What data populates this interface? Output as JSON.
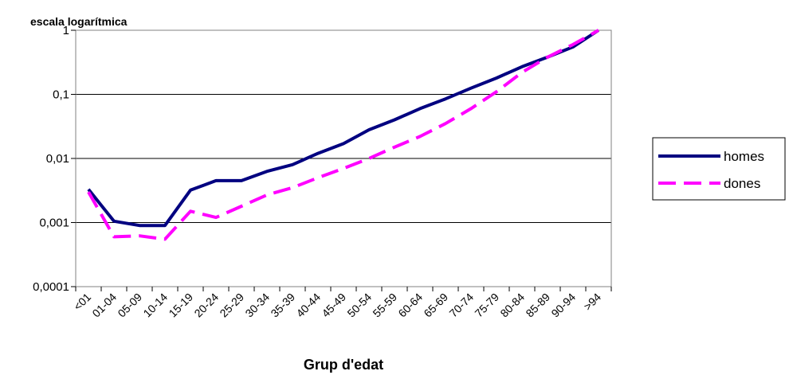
{
  "chart_data": {
    "type": "line",
    "ylabel": "escala logarítmica",
    "xlabel": "Grup d'edat",
    "yscale": "log",
    "ylim": [
      0.0001,
      1
    ],
    "yticks": [
      "0,0001",
      "0,001",
      "0,01",
      "0,1",
      "1"
    ],
    "grid": true,
    "legend_position": "right",
    "categories": [
      "<01",
      "01-04",
      "05-09",
      "10-14",
      "15-19",
      "20-24",
      "25-29",
      "30-34",
      "35-39",
      "40-44",
      "45-49",
      "50-54",
      "55-59",
      "60-64",
      "65-69",
      "70-74",
      "75-79",
      "80-84",
      "85-89",
      "90-94",
      ">94"
    ],
    "series": [
      {
        "name": "homes",
        "color": "#000080",
        "style": "solid",
        "values": [
          0.0033,
          0.00105,
          0.0009,
          0.0009,
          0.0032,
          0.0045,
          0.0045,
          0.0063,
          0.008,
          0.012,
          0.017,
          0.028,
          0.04,
          0.06,
          0.085,
          0.125,
          0.18,
          0.27,
          0.38,
          0.55,
          1.0
        ]
      },
      {
        "name": "dones",
        "color": "#ff00ff",
        "style": "dashed",
        "values": [
          0.003,
          0.0006,
          0.00062,
          0.00055,
          0.0015,
          0.0012,
          0.0018,
          0.0027,
          0.0035,
          0.005,
          0.007,
          0.01,
          0.015,
          0.022,
          0.035,
          0.06,
          0.11,
          0.22,
          0.38,
          0.6,
          1.0
        ]
      }
    ]
  }
}
